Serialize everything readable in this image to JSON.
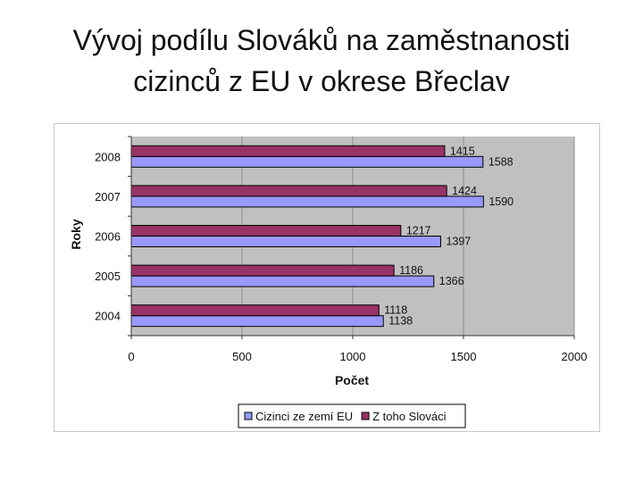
{
  "slide": {
    "title_line1": "Vývoj podílu Slováků na zaměstnanosti",
    "title_line2": "cizinců z EU v okrese Břeclav"
  },
  "chart_data": {
    "type": "bar",
    "orientation": "horizontal",
    "categories": [
      "2004",
      "2005",
      "2006",
      "2007",
      "2008"
    ],
    "series": [
      {
        "name": "Cizinci ze zemí EU",
        "values": [
          1138,
          1366,
          1397,
          1590,
          1588
        ],
        "color": "#9999ff"
      },
      {
        "name": "Z toho Slováci",
        "values": [
          1118,
          1186,
          1217,
          1424,
          1415
        ],
        "color": "#993366"
      }
    ],
    "xlabel": "Počet",
    "ylabel": "Roky",
    "xlim": [
      0,
      2000
    ],
    "xticks": [
      "0",
      "500",
      "1000",
      "1500",
      "2000"
    ],
    "grid": true,
    "plot_background": "#c0c0c0",
    "legend_position": "bottom"
  }
}
